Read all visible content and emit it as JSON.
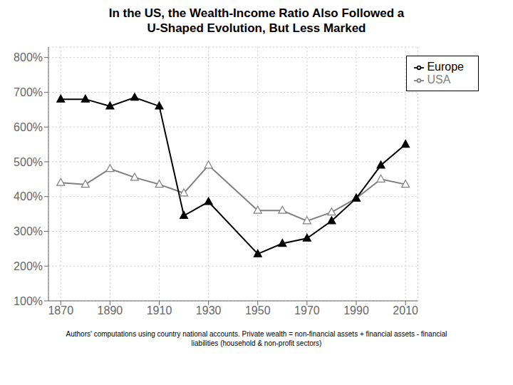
{
  "chart_data": {
    "type": "line",
    "title": "In the US, the Wealth-Income Ratio Also Followed a\nU-Shaped Evolution, But Less Marked",
    "footnote": "Authors' computations using country national accounts. Private wealth = non-financial assets + financial assets - financial\nliabilities (household & non-profit sectors)",
    "x": [
      1870,
      1880,
      1890,
      1900,
      1910,
      1920,
      1930,
      1950,
      1960,
      1970,
      1980,
      1990,
      2000,
      2010
    ],
    "series": [
      {
        "name": "USA",
        "color": "#808080",
        "marker": "triangle_open",
        "values": [
          440,
          435,
          480,
          455,
          435,
          410,
          490,
          360,
          360,
          330,
          355,
          395,
          450,
          435
        ]
      },
      {
        "name": "Europe",
        "color": "#000000",
        "marker": "triangle",
        "values": [
          680,
          680,
          660,
          685,
          660,
          345,
          385,
          235,
          265,
          280,
          330,
          395,
          490,
          550
        ]
      }
    ],
    "xlim": [
      1865,
      2015
    ],
    "xticks": [
      1870,
      1890,
      1910,
      1930,
      1950,
      1970,
      1990,
      2010
    ],
    "ylim": [
      100,
      830
    ],
    "yticks": [
      {
        "value": 100,
        "label": "100%"
      },
      {
        "value": 200,
        "label": "200%"
      },
      {
        "value": 300,
        "label": "300%"
      },
      {
        "value": 400,
        "label": "400%"
      },
      {
        "value": 500,
        "label": "500%"
      },
      {
        "value": 600,
        "label": "600%"
      },
      {
        "value": 700,
        "label": "700%"
      },
      {
        "value": 800,
        "label": "800%"
      }
    ],
    "grid": true,
    "legend": "upper right"
  }
}
